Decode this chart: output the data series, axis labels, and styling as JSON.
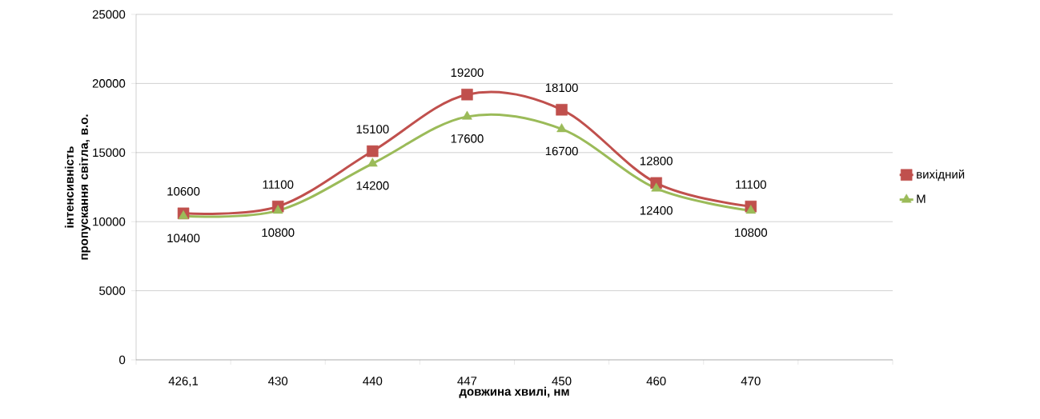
{
  "chart_data": {
    "type": "line",
    "xlabel": "довжина хвилі, нм",
    "ylabel": "інтенсивність пропускання світла, в.о.",
    "categories": [
      "426,1",
      "430",
      "440",
      "447",
      "450",
      "460",
      "470",
      null
    ],
    "series": [
      {
        "name": "вихідний",
        "color": "#c0504d",
        "marker": "square",
        "values": [
          10600,
          11100,
          15100,
          19200,
          18100,
          12800,
          11100,
          null
        ]
      },
      {
        "name": "М",
        "color": "#9bbb59",
        "marker": "triangle",
        "values": [
          10400,
          10800,
          14200,
          17600,
          16700,
          12400,
          10800,
          null
        ]
      }
    ],
    "ylim": [
      0,
      25000
    ],
    "yticks": [
      0,
      5000,
      10000,
      15000,
      20000,
      25000
    ],
    "grid": "y",
    "legend": "right",
    "data_labels": true
  }
}
